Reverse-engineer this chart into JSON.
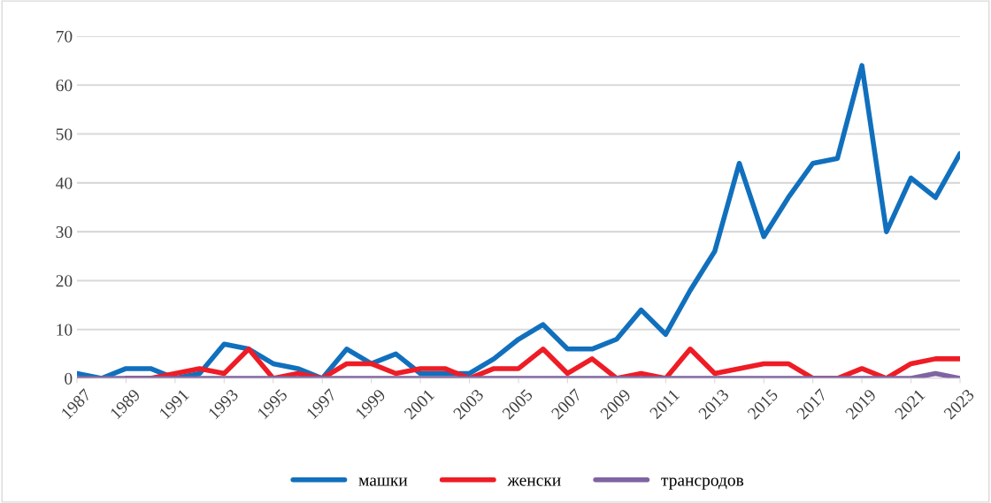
{
  "chart_data": {
    "type": "line",
    "x": [
      1987,
      1988,
      1989,
      1990,
      1991,
      1992,
      1993,
      1994,
      1995,
      1996,
      1997,
      1998,
      1999,
      2000,
      2001,
      2002,
      2003,
      2004,
      2005,
      2006,
      2007,
      2008,
      2009,
      2010,
      2011,
      2012,
      2013,
      2014,
      2015,
      2016,
      2017,
      2018,
      2019,
      2020,
      2021,
      2022,
      2023
    ],
    "xlim": [
      1987,
      2023
    ],
    "xticks": [
      1987,
      1989,
      1991,
      1993,
      1995,
      1997,
      1999,
      2001,
      2003,
      2005,
      2007,
      2009,
      2011,
      2013,
      2015,
      2017,
      2019,
      2021,
      2023
    ],
    "ylim": [
      0,
      70
    ],
    "yticks": [
      0,
      10,
      20,
      30,
      40,
      50,
      60,
      70
    ],
    "grid": "y",
    "legend": "bottom",
    "marker": "none",
    "line_style": "solid",
    "series": [
      {
        "name": "машки",
        "color": "#1170bd",
        "values": [
          1,
          0,
          2,
          2,
          0,
          1,
          7,
          6,
          3,
          2,
          0,
          6,
          3,
          5,
          1,
          1,
          1,
          4,
          8,
          11,
          6,
          6,
          8,
          14,
          9,
          18,
          26,
          44,
          29,
          37,
          44,
          45,
          64,
          30,
          41,
          37,
          46
        ]
      },
      {
        "name": "женски",
        "color": "#ee1c25",
        "values": [
          null,
          null,
          0,
          0,
          1,
          2,
          1,
          6,
          0,
          1,
          0,
          3,
          3,
          1,
          2,
          2,
          0,
          2,
          2,
          6,
          1,
          4,
          0,
          1,
          0,
          6,
          1,
          2,
          3,
          3,
          0,
          0,
          2,
          0,
          3,
          4,
          4
        ]
      },
      {
        "name": "трансродов",
        "color": "#8064a2",
        "values": [
          0,
          0,
          0,
          0,
          0,
          0,
          0,
          0,
          0,
          0,
          0,
          0,
          0,
          0,
          0,
          0,
          0,
          0,
          0,
          0,
          0,
          0,
          0,
          0,
          0,
          0,
          0,
          0,
          0,
          0,
          0,
          0,
          0,
          0,
          0,
          1,
          0
        ]
      }
    ]
  }
}
